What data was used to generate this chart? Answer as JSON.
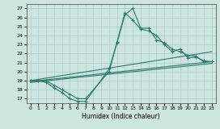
{
  "xlabel": "Humidex (Indice chaleur)",
  "xlim": [
    -0.5,
    23.5
  ],
  "ylim": [
    16.5,
    27.5
  ],
  "xticks": [
    0,
    1,
    2,
    3,
    4,
    5,
    6,
    7,
    8,
    9,
    10,
    11,
    12,
    13,
    14,
    15,
    16,
    17,
    18,
    19,
    20,
    21,
    22,
    23
  ],
  "yticks": [
    17,
    18,
    19,
    20,
    21,
    22,
    23,
    24,
    25,
    26,
    27
  ],
  "background_color": "#cce5e0",
  "grid_color": "#aacccc",
  "line_color": "#2d7a6a",
  "line1_x": [
    0,
    1,
    2,
    3,
    4,
    5,
    6,
    7,
    10,
    11,
    12,
    13,
    14,
    15,
    16,
    17,
    18,
    19,
    20,
    21,
    22,
    23
  ],
  "line1_y": [
    19,
    19,
    18.8,
    18.2,
    17.7,
    17,
    16.7,
    16.7,
    20.3,
    23.2,
    26.3,
    27,
    24.8,
    24.8,
    23.5,
    23.2,
    22.5,
    22.2,
    21.8,
    21.7,
    21.1,
    21.1
  ],
  "line2_x": [
    0,
    1,
    2,
    3,
    4,
    5,
    6,
    7,
    10,
    11,
    12,
    13,
    14,
    15,
    16,
    17,
    18,
    19,
    20,
    21,
    22,
    23
  ],
  "line2_y": [
    19,
    19,
    19,
    18.5,
    18,
    17.5,
    17,
    17,
    20,
    23.3,
    26.5,
    25.7,
    24.7,
    24.5,
    24.0,
    23.0,
    22.2,
    22.5,
    21.5,
    21.6,
    21.2,
    21.1
  ],
  "line3_x": [
    0,
    23
  ],
  "line3_y": [
    19.0,
    22.2
  ],
  "line4_x": [
    0,
    23
  ],
  "line4_y": [
    18.9,
    21.1
  ],
  "line5_x": [
    0,
    23
  ],
  "line5_y": [
    18.8,
    20.9
  ]
}
